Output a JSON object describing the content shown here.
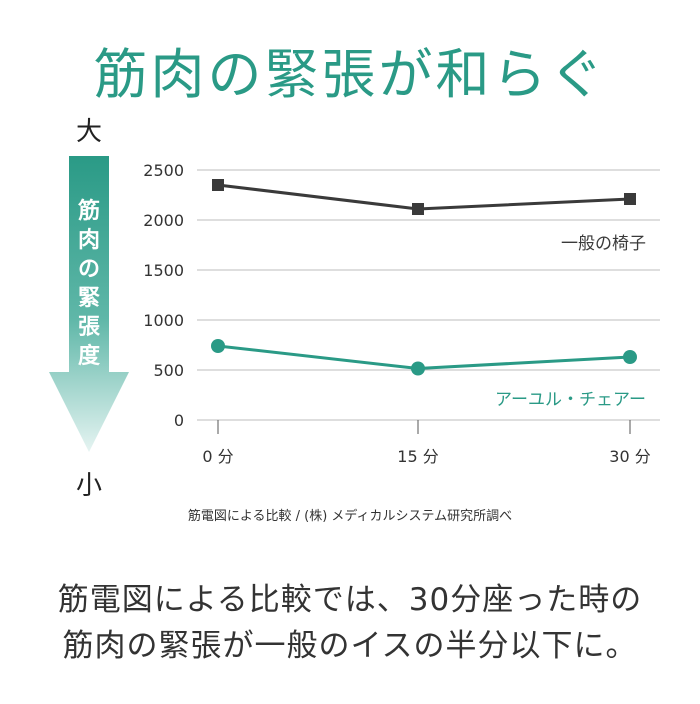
{
  "title": "筋肉の緊張が和らぐ",
  "caption": {
    "line1": "筋電図による比較では、30分座った時の",
    "line2": "筋肉の緊張が一般のイスの半分以下に。"
  },
  "source_note": "筋電図による比較 / (株) メディカルシステム研究所調べ",
  "colors": {
    "accent": "#2a9a86",
    "gray_series": "#3a3a3a",
    "arrow_top": "#2a9a86",
    "arrow_bottom": "#e6f4f2"
  },
  "chart_data": {
    "type": "line",
    "title": "",
    "y_axis": {
      "label": "筋肉の緊張度",
      "top_label": "大",
      "bottom_label": "小",
      "ylim": [
        0,
        2500
      ],
      "ticks": [
        "0",
        "500",
        "1000",
        "1500",
        "2000",
        "2500"
      ]
    },
    "x_axis": {
      "categories": [
        "0 分",
        "15 分",
        "30 分"
      ]
    },
    "grid": true,
    "series": [
      {
        "name": "一般の椅子",
        "color": "#3a3a3a",
        "marker": "square",
        "values": [
          2350,
          2110,
          2210
        ]
      },
      {
        "name": "アーユル・チェアー",
        "color": "#2a9a86",
        "marker": "circle",
        "values": [
          740,
          515,
          630
        ]
      }
    ]
  }
}
